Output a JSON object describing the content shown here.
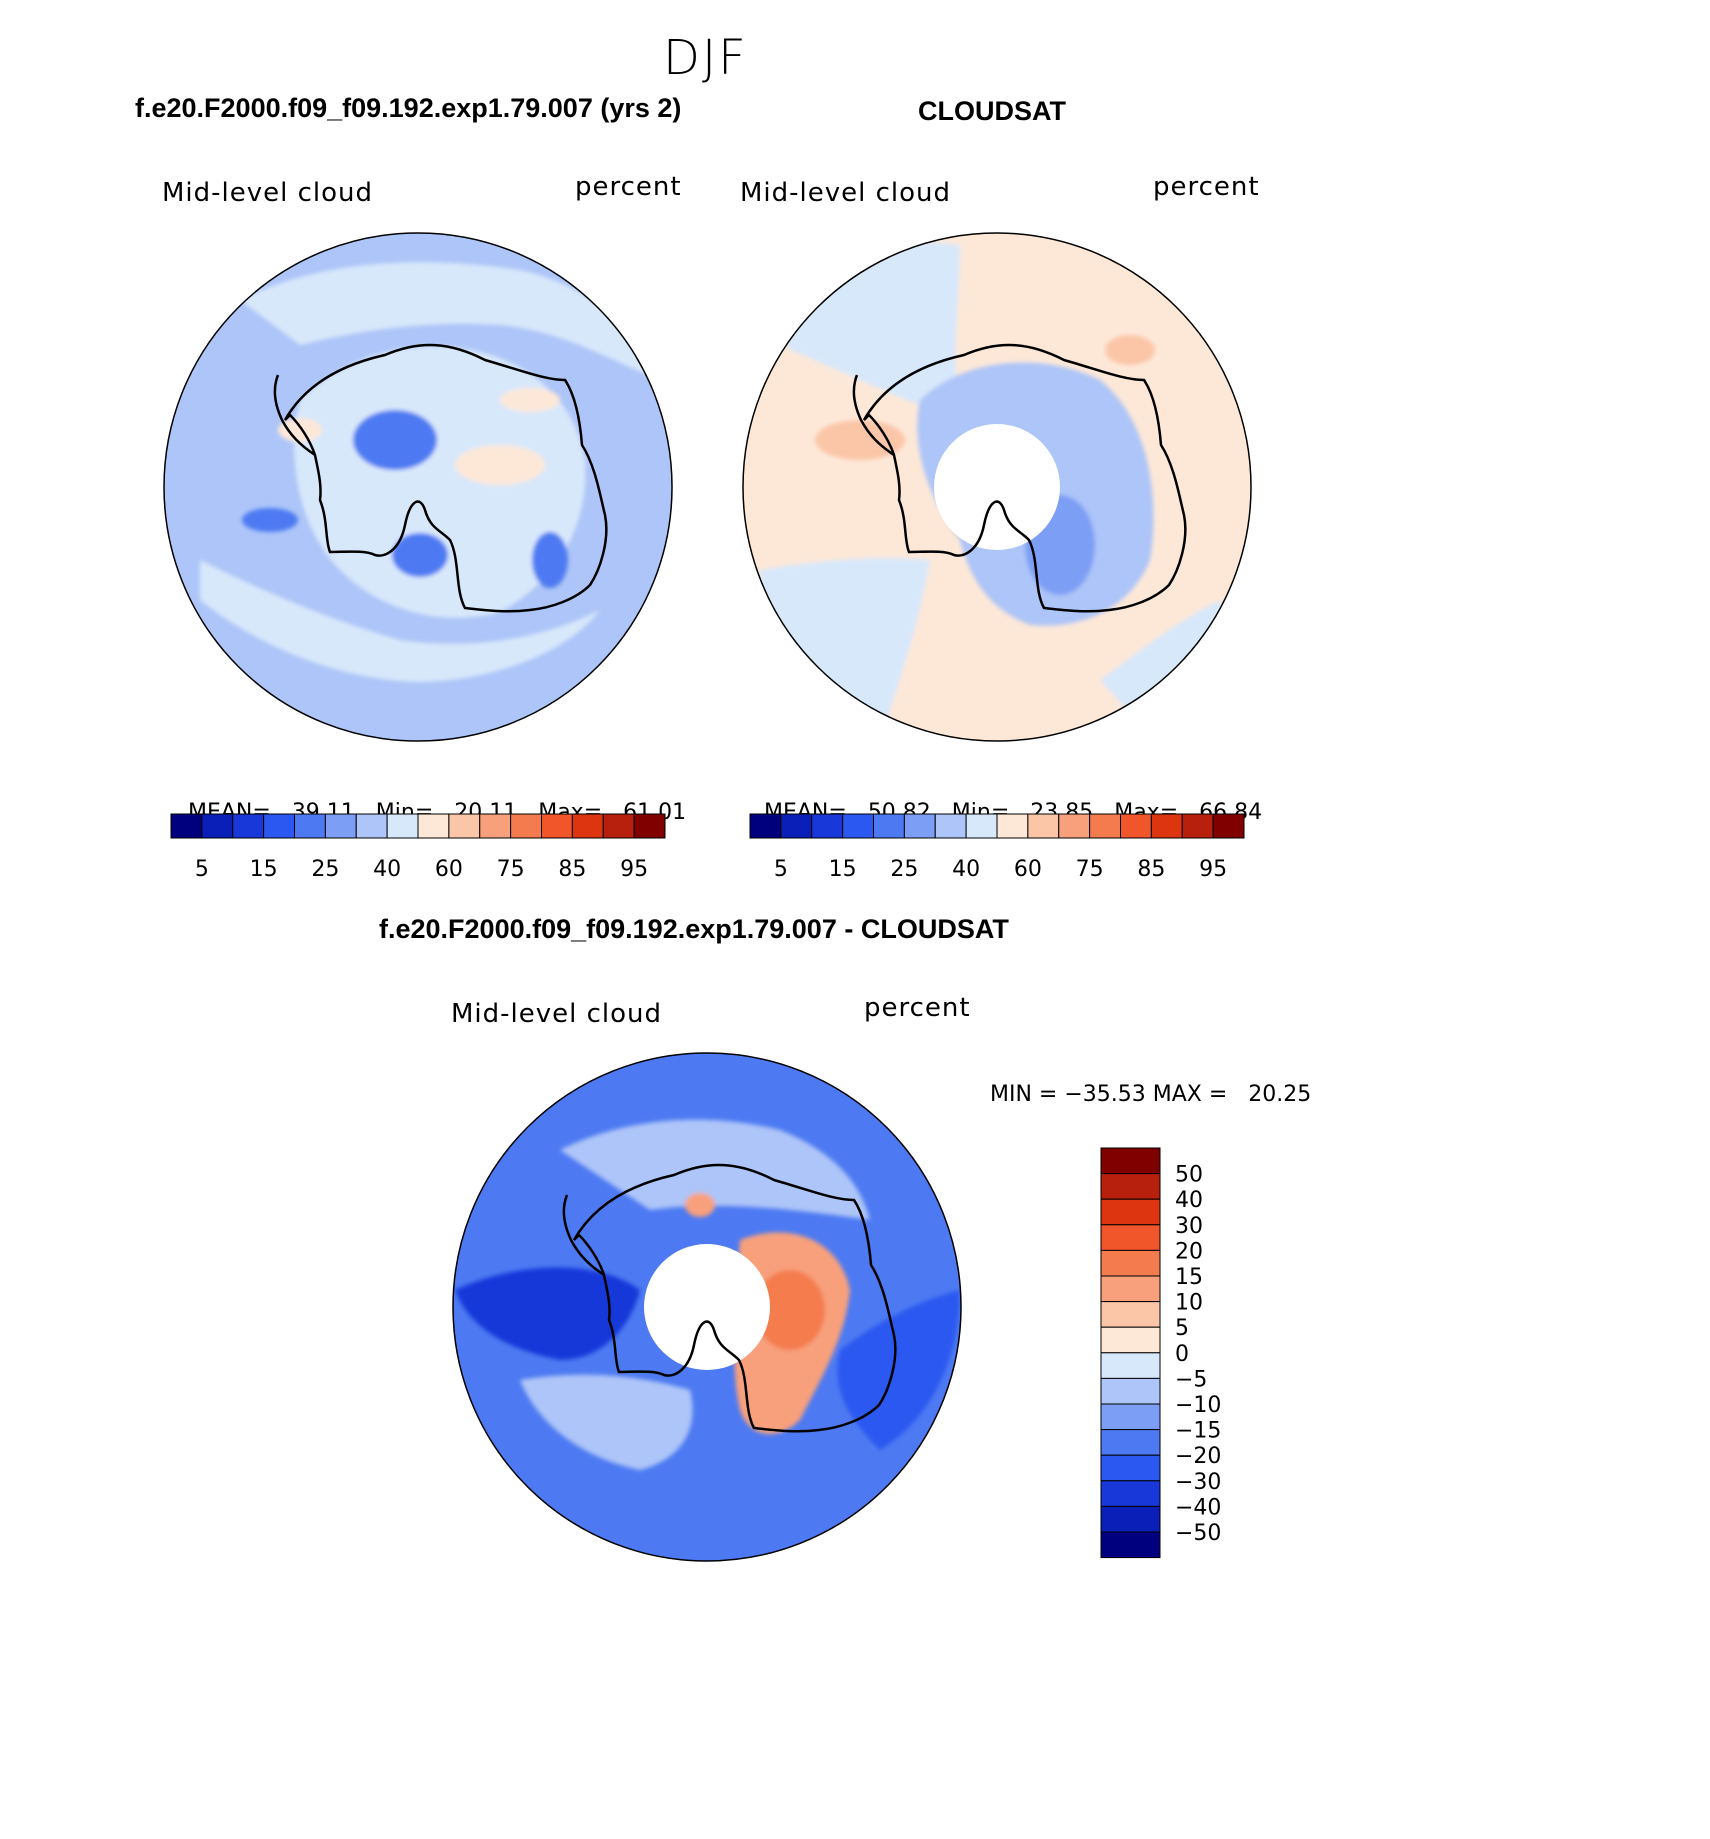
{
  "page_title": "DJF",
  "colors": {
    "abs_scale": [
      "#00007f",
      "#0a1fb8",
      "#1838d9",
      "#2a58f0",
      "#4d7af2",
      "#7d9ef5",
      "#adc5f8",
      "#d8e8fb",
      "#fde8d8",
      "#fbc6a8",
      "#f8a07c",
      "#f47b4e",
      "#f0562a",
      "#dc3510",
      "#b8200e",
      "#800000"
    ],
    "diff_scale": [
      "#00007f",
      "#0a1fb8",
      "#1838d9",
      "#2a58f0",
      "#4d7af2",
      "#7d9ef5",
      "#adc5f8",
      "#d8e8fb",
      "#fde8d8",
      "#fbc6a8",
      "#f8a07c",
      "#f47b4e",
      "#f0562a",
      "#dc3510",
      "#b8200e",
      "#800000"
    ]
  },
  "chart_data": [
    {
      "type": "heatmap",
      "projection": "south-polar-stereographic",
      "title": "f.e20.F2000.f09_f09.192.exp1.79.007 (yrs 2)",
      "left_label": "Mid-level cloud",
      "right_label": "percent",
      "stats": {
        "mean_label": "MEAN=",
        "mean": "39.11",
        "min_label": "Min=",
        "min": "20.11",
        "max_label": "Max=",
        "max": "61.01"
      },
      "colorbar": {
        "orientation": "horizontal",
        "ticks": [
          "5",
          "15",
          "25",
          "40",
          "60",
          "75",
          "85",
          "95"
        ]
      },
      "region_values": {
        "ocean_background": 35,
        "ocean_bands": 42,
        "continent_interior": 47,
        "interior_low_patches": 22,
        "interior_high_patches": 52,
        "peninsula": 55
      }
    },
    {
      "type": "heatmap",
      "projection": "south-polar-stereographic",
      "title": "CLOUDSAT",
      "left_label": "Mid-level cloud",
      "right_label": "percent",
      "stats": {
        "mean_label": "MEAN=",
        "mean": "50.82",
        "min_label": "Min=",
        "min": "23.85",
        "max_label": "Max=",
        "max": "66.84"
      },
      "colorbar": {
        "orientation": "horizontal",
        "ticks": [
          "5",
          "15",
          "25",
          "40",
          "60",
          "75",
          "85",
          "95"
        ]
      },
      "missing_data_region": "pole",
      "region_values": {
        "ocean_background": 55,
        "ocean_sectors": 45,
        "continent_interior": 38,
        "interior_low_patch": 28,
        "hot_spots": 63
      }
    },
    {
      "type": "heatmap",
      "projection": "south-polar-stereographic",
      "title": "f.e20.F2000.f09_f09.192.exp1.79.007 - CLOUDSAT",
      "left_label": "Mid-level cloud",
      "right_label": "percent",
      "stats_text": "MIN = −35.53 MAX =   20.25",
      "colorbar": {
        "orientation": "vertical",
        "ticks": [
          "50",
          "40",
          "30",
          "20",
          "15",
          "10",
          "5",
          "0",
          "−5",
          "−10",
          "−15",
          "−20",
          "−30",
          "−40",
          "−50"
        ]
      },
      "missing_data_region": "pole",
      "region_values": {
        "ocean_background": -17,
        "ocean_strong_negative": -25,
        "ocean_weak_negative": -7,
        "east_antarctica_positive": 12,
        "east_antarctica_peak": 18,
        "west_negative": -32
      }
    }
  ]
}
